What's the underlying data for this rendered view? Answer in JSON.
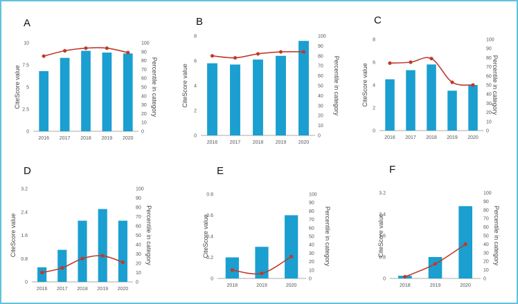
{
  "colors": {
    "bar": "#1a9fd0",
    "line": "#c0392b",
    "axis": "#aaaaaa",
    "frame": "#5ec2e0"
  },
  "chart_data": [
    {
      "panel": "A",
      "type": "bar+line",
      "categories": [
        "2016",
        "2017",
        "2018",
        "2019",
        "2020"
      ],
      "series": [
        {
          "name": "CiteScore value",
          "axis": "left",
          "values": [
            6.8,
            8.3,
            9.1,
            8.9,
            8.8
          ]
        },
        {
          "name": "Percentile in category",
          "axis": "right",
          "values": [
            85,
            91,
            94,
            94,
            89
          ]
        }
      ],
      "ylabel": "CiteScore value",
      "y2label": "Percentile in category",
      "ylim": [
        0,
        10
      ],
      "yticks": [
        "0",
        "2.5",
        "5",
        "7.5",
        "10"
      ],
      "y2lim": [
        0,
        100
      ],
      "y2ticks": [
        "0",
        "10",
        "20",
        "30",
        "40",
        "50",
        "60",
        "70",
        "80",
        "90",
        "100"
      ]
    },
    {
      "panel": "B",
      "type": "bar+line",
      "categories": [
        "2016",
        "2017",
        "2018",
        "2019",
        "2020"
      ],
      "series": [
        {
          "name": "CiteScore value",
          "axis": "left",
          "values": [
            5.8,
            5.7,
            6.1,
            6.4,
            7.6
          ]
        },
        {
          "name": "Percentile in category",
          "axis": "right",
          "values": [
            80,
            78,
            82,
            84,
            84
          ]
        }
      ],
      "ylabel": "CiteScore value",
      "y2label": "Percentile in category",
      "ylim": [
        0,
        8
      ],
      "yticks": [
        "0",
        "2",
        "4",
        "6",
        "8"
      ],
      "y2lim": [
        0,
        100
      ],
      "y2ticks": [
        "0",
        "10",
        "20",
        "30",
        "40",
        "50",
        "60",
        "70",
        "80",
        "90",
        "100"
      ]
    },
    {
      "panel": "C",
      "type": "bar+line",
      "categories": [
        "2016",
        "2017",
        "2018",
        "2019",
        "2020"
      ],
      "series": [
        {
          "name": "CiteScore value",
          "axis": "left",
          "values": [
            4.5,
            5.3,
            5.8,
            3.5,
            4.0
          ]
        },
        {
          "name": "Percentile in category",
          "axis": "right",
          "values": [
            74,
            75,
            79,
            53,
            50
          ]
        }
      ],
      "ylabel": "CiteScore value",
      "y2label": "Percentile in category",
      "ylim": [
        0,
        8
      ],
      "yticks": [
        "0",
        "2",
        "4",
        "6",
        "8"
      ],
      "y2lim": [
        0,
        100
      ],
      "y2ticks": [
        "0",
        "10",
        "20",
        "30",
        "40",
        "50",
        "60",
        "70",
        "80",
        "90",
        "100"
      ]
    },
    {
      "panel": "D",
      "type": "bar+line",
      "categories": [
        "2016",
        "2017",
        "2018",
        "2019",
        "2020"
      ],
      "series": [
        {
          "name": "CiteScore value",
          "axis": "left",
          "values": [
            0.5,
            1.1,
            2.1,
            2.5,
            2.1
          ]
        },
        {
          "name": "Percentile in category",
          "axis": "right",
          "values": [
            10,
            15,
            25,
            28,
            21
          ]
        }
      ],
      "ylabel": "CiteScore value",
      "y2label": "Percentile in category",
      "ylim": [
        0,
        3.2
      ],
      "yticks": [
        "0",
        "0.8",
        "1.6",
        "2.4",
        "3.2"
      ],
      "y2lim": [
        0,
        100
      ],
      "y2ticks": [
        "0",
        "10",
        "20",
        "30",
        "40",
        "50",
        "60",
        "70",
        "80",
        "90",
        "100"
      ]
    },
    {
      "panel": "E",
      "type": "bar+line",
      "categories": [
        "2018",
        "2019",
        "2020"
      ],
      "series": [
        {
          "name": "CiteScore value",
          "axis": "left",
          "values": [
            0.2,
            0.3,
            0.6
          ]
        },
        {
          "name": "Percentile in category",
          "axis": "right",
          "values": [
            10,
            6,
            26
          ]
        }
      ],
      "ylabel": "CiteScore value",
      "y2label": "Percentile in category",
      "ylim": [
        0,
        0.8
      ],
      "yticks": [
        "0",
        "0.2",
        "0.4",
        "0.6",
        "0.8"
      ],
      "y2lim": [
        0,
        100
      ],
      "y2ticks": [
        "0",
        "10",
        "20",
        "30",
        "40",
        "50",
        "60",
        "70",
        "80",
        "90",
        "100"
      ]
    },
    {
      "panel": "F",
      "type": "bar+line",
      "categories": [
        "2018",
        "2019",
        "2020"
      ],
      "series": [
        {
          "name": "CiteScore value",
          "axis": "left",
          "values": [
            0.1,
            0.8,
            2.7
          ]
        },
        {
          "name": "Percentile in category",
          "axis": "right",
          "values": [
            2,
            17,
            40
          ]
        }
      ],
      "ylabel": "CiteScore value",
      "y2label": "Percentile in category",
      "ylim": [
        0,
        3.2
      ],
      "yticks": [
        "0",
        "0.8",
        "1.6",
        "2.4",
        "3.2"
      ],
      "y2lim": [
        0,
        100
      ],
      "y2ticks": [
        "0",
        "10",
        "20",
        "30",
        "40",
        "50",
        "60",
        "70",
        "80",
        "90",
        "100"
      ]
    }
  ]
}
